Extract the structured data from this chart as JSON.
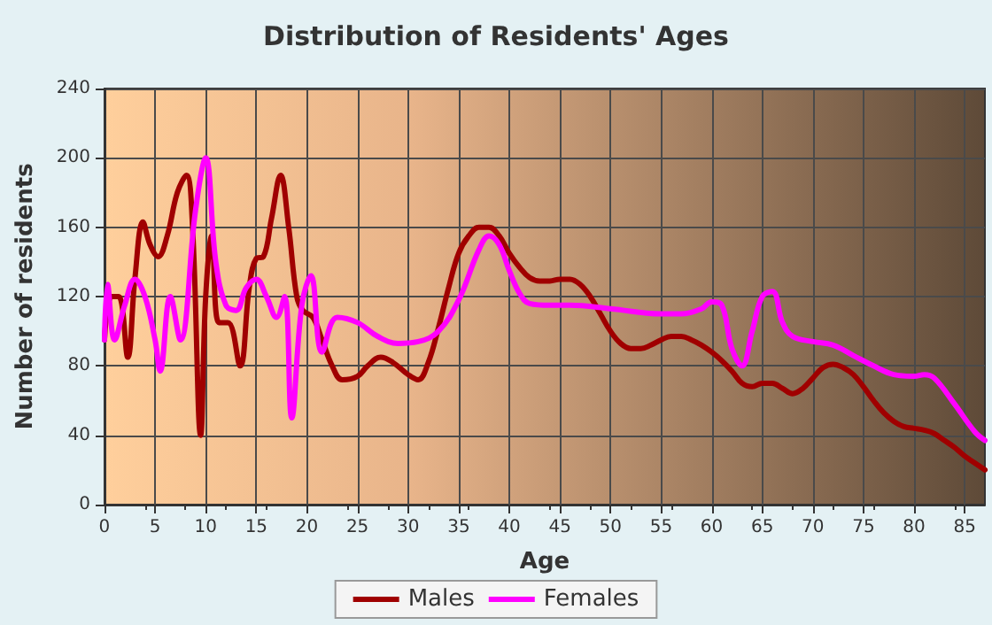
{
  "chart_data": {
    "type": "line",
    "title": "Distribution of Residents' Ages",
    "xlabel": "Age",
    "ylabel": "Number of residents",
    "xlim": [
      0,
      87
    ],
    "xticks": [
      0,
      5,
      10,
      15,
      20,
      25,
      30,
      35,
      40,
      45,
      50,
      55,
      60,
      65,
      70,
      75,
      80,
      85
    ],
    "ylim": [
      0,
      240
    ],
    "yticks": [
      0,
      40,
      80,
      120,
      160,
      200,
      240
    ],
    "grid": true,
    "legend": "bottom",
    "marker": "none",
    "line_style": "solid",
    "series": [
      {
        "name": "Males",
        "color": "#a00000",
        "x": [
          0,
          0.7,
          1.4,
          2.3,
          3,
          3.8,
          4.5,
          5.3,
          6.2,
          7.2,
          8.1,
          8.7,
          9.5,
          10,
          10.6,
          11.3,
          12.2,
          13.4,
          14.3,
          15,
          15.7,
          16.5,
          17.4,
          18.2,
          19,
          19.6,
          20.6,
          21.5,
          22.5,
          23.5,
          25,
          26,
          27.3,
          28.5,
          30,
          31,
          32,
          33,
          34,
          35,
          36,
          37,
          38,
          39,
          40,
          41,
          42,
          43,
          44,
          45,
          46,
          47,
          48,
          49,
          50,
          51,
          52,
          53,
          54,
          55,
          56,
          57,
          58,
          59,
          60,
          61,
          62,
          63,
          64,
          65,
          66,
          67,
          68,
          69,
          70,
          71,
          72,
          73,
          74,
          75,
          76,
          77,
          78,
          79,
          80,
          81,
          82,
          83,
          84,
          85,
          86,
          87
        ],
        "values": [
          95,
          120,
          120,
          85,
          130,
          163,
          150,
          143,
          155,
          180,
          190,
          160,
          40,
          120,
          155,
          105,
          105,
          80,
          125,
          142,
          143,
          165,
          190,
          160,
          120,
          112,
          108,
          95,
          80,
          72,
          74,
          80,
          85,
          82,
          75,
          72,
          82,
          102,
          125,
          145,
          155,
          160,
          160,
          155,
          145,
          137,
          131,
          129,
          129,
          130,
          130,
          127,
          120,
          110,
          100,
          93,
          90,
          90,
          92,
          95,
          97,
          97,
          95,
          92,
          88,
          83,
          77,
          70,
          68,
          70,
          70,
          67,
          64,
          67,
          73,
          79,
          81,
          79,
          75,
          68,
          60,
          53,
          48,
          45,
          44,
          43,
          41,
          37,
          33,
          28,
          24,
          20
        ]
      },
      {
        "name": "Females",
        "color": "#ff00ff",
        "x": [
          0,
          0.3,
          1,
          2,
          3,
          4,
          5,
          5.5,
          6.5,
          7.5,
          9,
          10,
          11,
          12,
          13,
          14,
          15,
          16,
          17,
          17.8,
          18.5,
          19.5,
          20.4,
          21.5,
          23,
          25,
          27,
          29,
          31,
          33,
          35,
          37,
          38,
          39,
          40,
          41,
          42,
          44,
          46,
          50,
          55,
          57,
          59,
          60,
          61,
          62,
          63,
          64,
          65,
          66,
          67,
          68,
          70,
          72,
          74,
          76,
          78,
          80,
          81,
          82,
          84,
          86,
          87
        ],
        "values": [
          95,
          127,
          95,
          115,
          130,
          120,
          95,
          77,
          120,
          95,
          170,
          200,
          140,
          115,
          112,
          125,
          130,
          120,
          108,
          120,
          50,
          115,
          132,
          88,
          108,
          105,
          97,
          93,
          94,
          100,
          118,
          147,
          155,
          150,
          135,
          122,
          116,
          115,
          115,
          113,
          110,
          110,
          113,
          117,
          115,
          90,
          80,
          100,
          120,
          123,
          105,
          97,
          94,
          92,
          86,
          80,
          75,
          74,
          75,
          73,
          58,
          42,
          37
        ]
      }
    ]
  }
}
